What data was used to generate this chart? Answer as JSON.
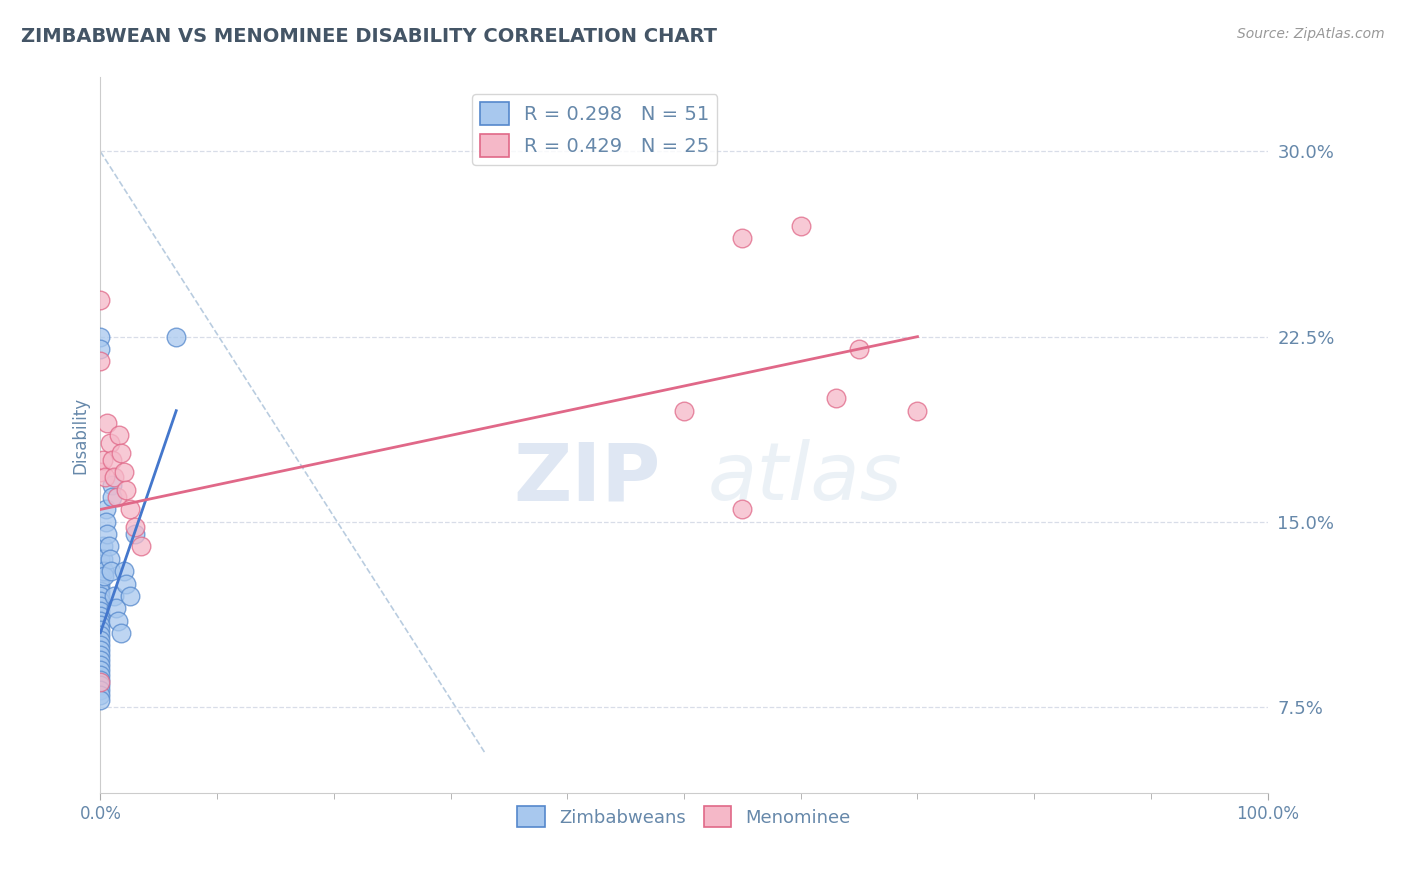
{
  "title": "ZIMBABWEAN VS MENOMINEE DISABILITY CORRELATION CHART",
  "source_text": "Source: ZipAtlas.com",
  "ylabel": "Disability",
  "xmin": 0.0,
  "xmax": 1.0,
  "ymin": 0.04,
  "ymax": 0.33,
  "yticks": [
    0.075,
    0.15,
    0.225,
    0.3
  ],
  "ytick_labels": [
    "7.5%",
    "15.0%",
    "22.5%",
    "30.0%"
  ],
  "xtick_left_label": "0.0%",
  "xtick_right_label": "100.0%",
  "blue_R": 0.298,
  "blue_N": 51,
  "pink_R": 0.429,
  "pink_N": 25,
  "blue_color": "#a8c8ee",
  "pink_color": "#f5b8c8",
  "blue_edge_color": "#5588cc",
  "pink_edge_color": "#e06888",
  "blue_line_color": "#4477cc",
  "pink_line_color": "#e06888",
  "ref_line_color": "#a8c0d8",
  "grid_color": "#d8dde8",
  "title_color": "#445566",
  "axis_color": "#6688aa",
  "source_color": "#999999",
  "legend_label_blue": "Zimbabweans",
  "legend_label_pink": "Menominee",
  "blue_scatter_x": [
    0.0,
    0.0,
    0.0,
    0.0,
    0.0,
    0.0,
    0.0,
    0.0,
    0.0,
    0.0,
    0.0,
    0.0,
    0.0,
    0.0,
    0.0,
    0.0,
    0.0,
    0.0,
    0.0,
    0.0,
    0.0,
    0.0,
    0.0,
    0.0,
    0.0,
    0.0,
    0.0,
    0.0,
    0.0,
    0.0,
    0.002,
    0.002,
    0.003,
    0.003,
    0.005,
    0.005,
    0.006,
    0.007,
    0.008,
    0.009,
    0.01,
    0.01,
    0.012,
    0.013,
    0.015,
    0.018,
    0.02,
    0.022,
    0.025,
    0.03,
    0.065
  ],
  "blue_scatter_y": [
    0.225,
    0.22,
    0.135,
    0.13,
    0.128,
    0.126,
    0.124,
    0.122,
    0.12,
    0.118,
    0.116,
    0.114,
    0.112,
    0.11,
    0.108,
    0.106,
    0.104,
    0.102,
    0.1,
    0.098,
    0.096,
    0.094,
    0.092,
    0.09,
    0.088,
    0.086,
    0.084,
    0.082,
    0.08,
    0.078,
    0.14,
    0.135,
    0.13,
    0.128,
    0.155,
    0.15,
    0.145,
    0.14,
    0.135,
    0.13,
    0.165,
    0.16,
    0.12,
    0.115,
    0.11,
    0.105,
    0.13,
    0.125,
    0.12,
    0.145,
    0.225
  ],
  "pink_scatter_x": [
    0.0,
    0.0,
    0.0,
    0.0,
    0.002,
    0.004,
    0.006,
    0.008,
    0.01,
    0.012,
    0.014,
    0.016,
    0.018,
    0.02,
    0.022,
    0.025,
    0.03,
    0.035,
    0.5,
    0.55,
    0.6,
    0.65,
    0.7,
    0.55,
    0.63
  ],
  "pink_scatter_y": [
    0.24,
    0.215,
    0.17,
    0.085,
    0.175,
    0.168,
    0.19,
    0.182,
    0.175,
    0.168,
    0.16,
    0.185,
    0.178,
    0.17,
    0.163,
    0.155,
    0.148,
    0.14,
    0.195,
    0.265,
    0.27,
    0.22,
    0.195,
    0.155,
    0.2
  ],
  "blue_trendline_x": [
    0.0,
    0.065
  ],
  "blue_trendline_y": [
    0.105,
    0.195
  ],
  "pink_trendline_x": [
    0.0,
    0.7
  ],
  "pink_trendline_y": [
    0.155,
    0.225
  ],
  "ref_line_x": [
    0.0,
    0.33
  ],
  "ref_line_y": [
    0.3,
    0.056
  ],
  "watermark_zip": "ZIP",
  "watermark_atlas": "atlas",
  "background_color": "#ffffff"
}
